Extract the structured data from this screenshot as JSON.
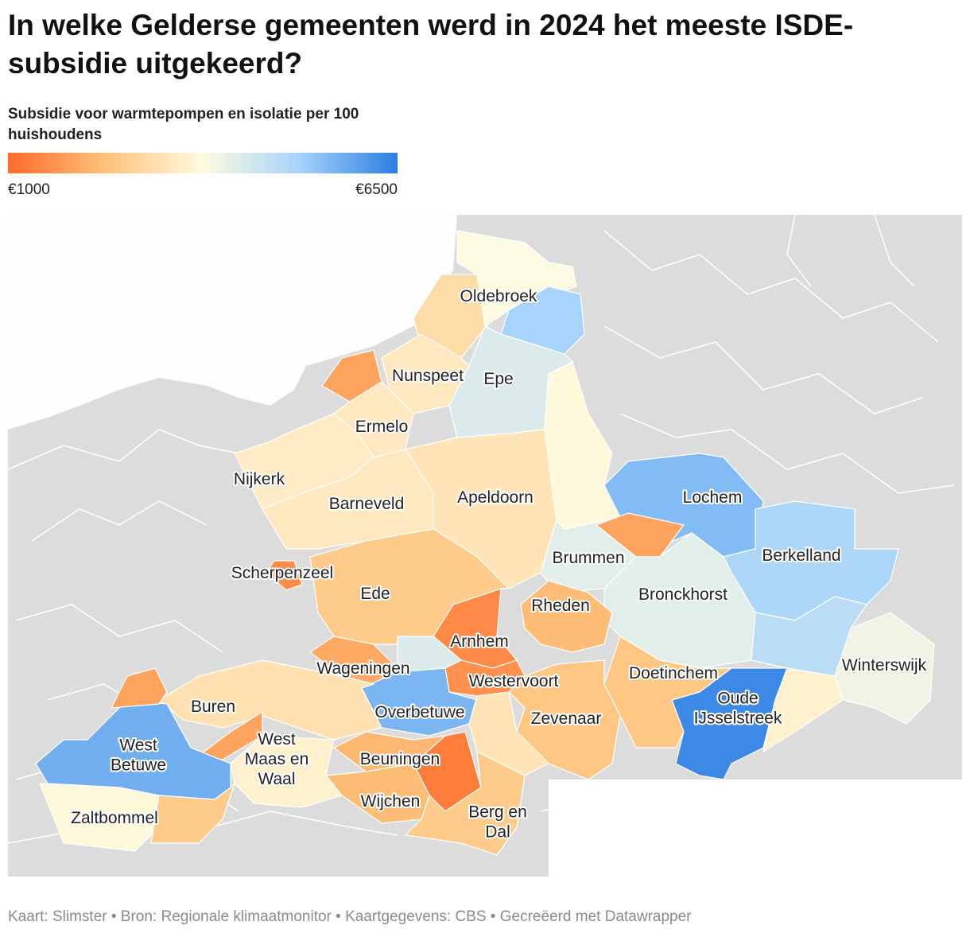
{
  "title": "In welke Gelderse gemeenten werd in 2024 het meeste ISDE-subsidie uitgekeerd?",
  "subtitle": "Subsidie voor warmtepompen en isolatie per 100 huishoudens",
  "legend": {
    "min": {
      "value": 1000,
      "label": "€1000"
    },
    "max": {
      "value": 6500,
      "label": "€6500"
    },
    "colors": [
      "#ff6a2a",
      "#fec27a",
      "#fffbe0",
      "#a5d3fb",
      "#2a7de1"
    ]
  },
  "regions": [
    {
      "label": [
        "Oldebroek"
      ],
      "value": 3000
    },
    {
      "label": null,
      "value": 3800
    },
    {
      "label": null,
      "value": 5100
    },
    {
      "label": [
        "Epe"
      ],
      "value": 4300
    },
    {
      "label": [
        "Nunspeet"
      ],
      "value": 3300
    },
    {
      "label": null,
      "value": 1900
    },
    {
      "label": [
        "Ermelo"
      ],
      "value": 3300
    },
    {
      "label": [
        "Nijkerk"
      ],
      "value": 3400
    },
    {
      "label": [
        "Barneveld"
      ],
      "value": 3300
    },
    {
      "label": [
        "Scherpenzeel"
      ],
      "value": 1500
    },
    {
      "label": [
        "Apeldoorn"
      ],
      "value": 3200
    },
    {
      "label": null,
      "value": 3700
    },
    {
      "label": [
        "Brummen"
      ],
      "value": 4200
    },
    {
      "label": [
        "Lochem"
      ],
      "value": 5500
    },
    {
      "label": null,
      "value": 1900
    },
    {
      "label": [
        "Berkelland"
      ],
      "value": 5000
    },
    {
      "label": [
        "Bronckhorst"
      ],
      "value": 4200
    },
    {
      "label": [
        "Winterswijk"
      ],
      "value": 4000
    },
    {
      "label": null,
      "value": 4800
    },
    {
      "label": [
        "Oude",
        "IJsselstreek"
      ],
      "value": 6300
    },
    {
      "label": [
        "Doetinchem"
      ],
      "value": 2500
    },
    {
      "label": null,
      "value": 3500
    },
    {
      "label": [
        "Rheden"
      ],
      "value": 2300
    },
    {
      "label": [
        "Arnhem"
      ],
      "value": 1500
    },
    {
      "label": [
        "Westervoort"
      ],
      "value": 1600
    },
    {
      "label": [
        "Zevenaar"
      ],
      "value": 2500
    },
    {
      "label": [
        "Ede"
      ],
      "value": 2600
    },
    {
      "label": [
        "Wageningen"
      ],
      "value": 2000
    },
    {
      "label": null,
      "value": 4300
    },
    {
      "label": [
        "Overbetuwe"
      ],
      "value": 5600
    },
    {
      "label": null,
      "value": 3200
    },
    {
      "label": null,
      "value": 1300
    },
    {
      "label": [
        "Beuningen"
      ],
      "value": 2200
    },
    {
      "label": [
        "Wijchen"
      ],
      "value": 2300
    },
    {
      "label": [
        "Berg en",
        "Dal"
      ],
      "value": 2600
    },
    {
      "label": [
        "Buren"
      ],
      "value": 3100
    },
    {
      "label": null,
      "value": 1900
    },
    {
      "label": [
        "West",
        "Betuwe"
      ],
      "value": 5700
    },
    {
      "label": null,
      "value": 1900
    },
    {
      "label": [
        "West",
        "Maas en",
        "Waal"
      ],
      "value": 3500
    },
    {
      "label": [
        "Zaltbommel"
      ],
      "value": 3700
    },
    {
      "label": null,
      "value": 2600
    }
  ],
  "footer": "Kaart: Slimster • Bron: Regionale klimaatmonitor • Kaartgegevens: CBS • Gecreëerd met Datawrapper"
}
